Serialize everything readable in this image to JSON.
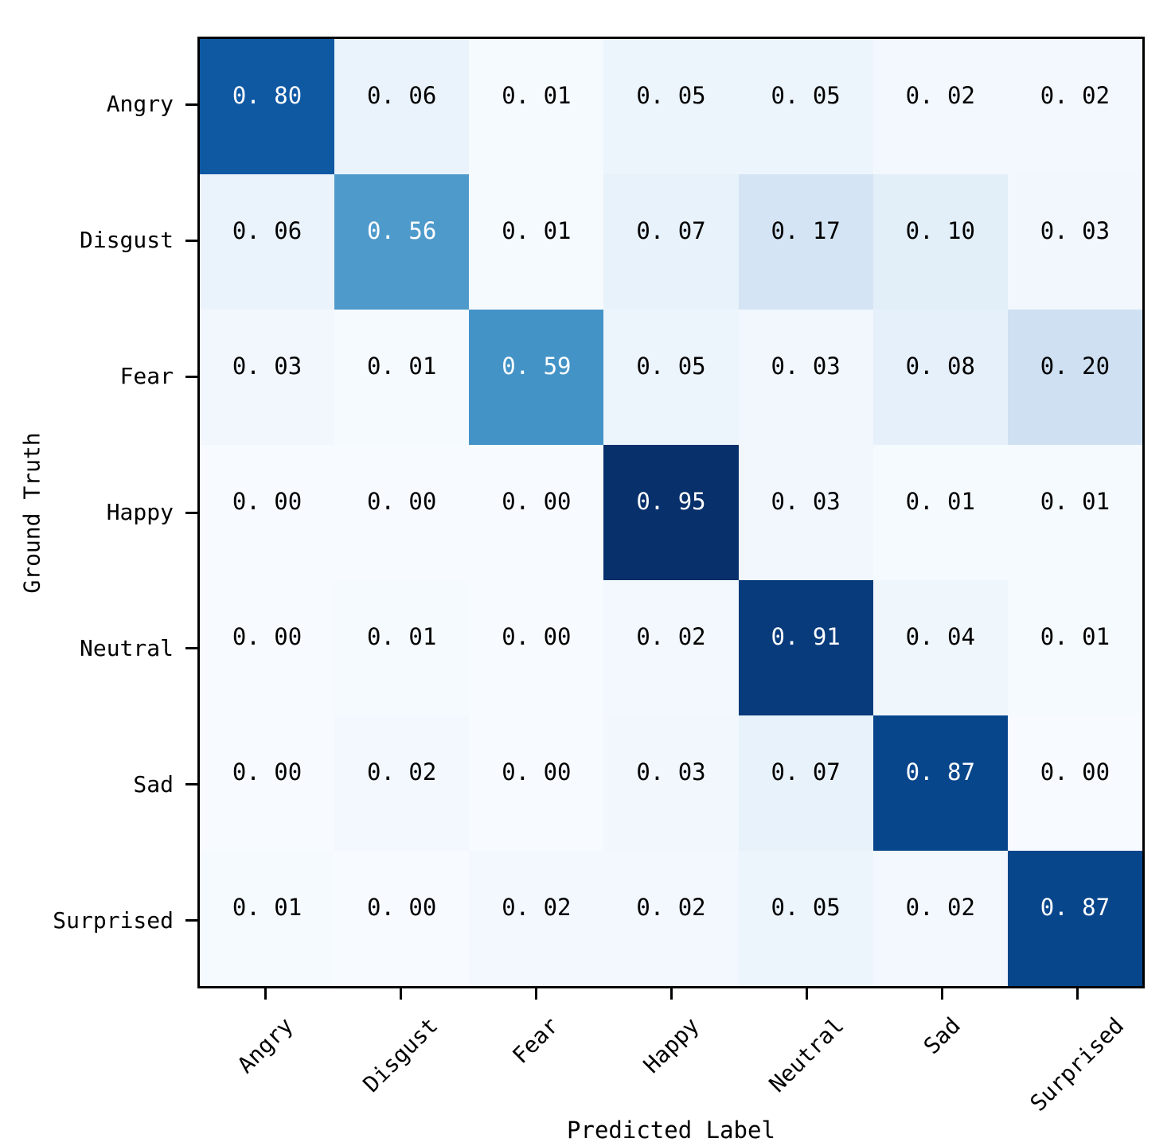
{
  "chart_data": {
    "type": "heatmap",
    "title": "",
    "xlabel": "Predicted Label",
    "ylabel": "Ground Truth",
    "x_categories": [
      "Angry",
      "Disgust",
      "Fear",
      "Happy",
      "Neutral",
      "Sad",
      "Surprised"
    ],
    "y_categories": [
      "Angry",
      "Disgust",
      "Fear",
      "Happy",
      "Neutral",
      "Sad",
      "Surprised"
    ],
    "matrix": [
      [
        0.8,
        0.06,
        0.01,
        0.05,
        0.05,
        0.02,
        0.02
      ],
      [
        0.06,
        0.56,
        0.01,
        0.07,
        0.17,
        0.1,
        0.03
      ],
      [
        0.03,
        0.01,
        0.59,
        0.05,
        0.03,
        0.08,
        0.2
      ],
      [
        0.0,
        0.0,
        0.0,
        0.95,
        0.03,
        0.01,
        0.01
      ],
      [
        0.0,
        0.01,
        0.0,
        0.02,
        0.91,
        0.04,
        0.01
      ],
      [
        0.0,
        0.02,
        0.0,
        0.03,
        0.07,
        0.87,
        0.0
      ],
      [
        0.01,
        0.0,
        0.02,
        0.02,
        0.05,
        0.02,
        0.87
      ]
    ],
    "value_decimals": 2,
    "vmin": 0.0,
    "vmax": 0.95,
    "colormap": "Blues",
    "colormap_stops": [
      "#f7fbff",
      "#deebf7",
      "#c6dbef",
      "#9ecae1",
      "#6baed6",
      "#4292c6",
      "#2171b5",
      "#08519c",
      "#08306b"
    ],
    "cell_text_colors": {
      "dark": "#000000",
      "light": "#ffffff"
    },
    "text_color_threshold": 0.5,
    "x_tick_rotation_deg": 45,
    "grid": false,
    "legend": false
  },
  "figure": {
    "background": "#ffffff",
    "frame_color": "#000000",
    "tick_color": "#000000"
  }
}
